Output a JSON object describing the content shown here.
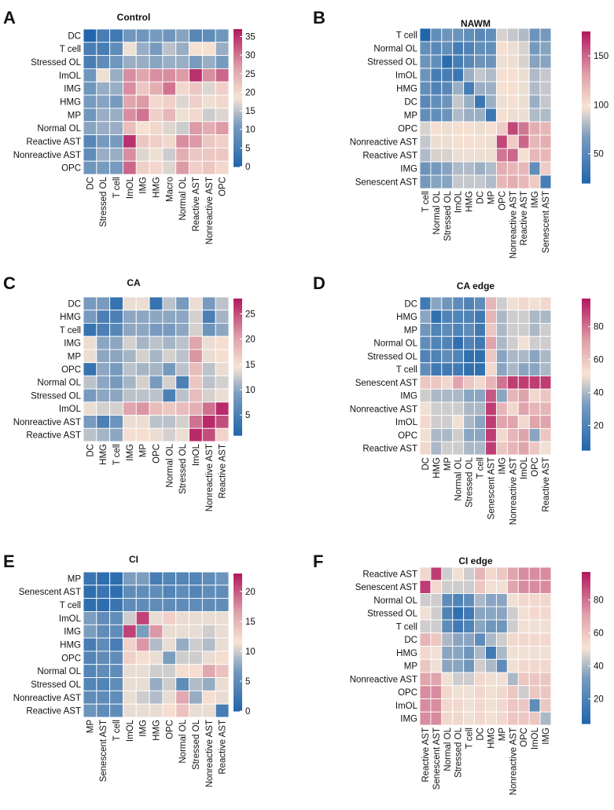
{
  "chart_data": [
    {
      "type": "heatmap",
      "panel_letter": "A",
      "title": "Control",
      "rows": [
        "DC",
        "T cell",
        "Stressed OL",
        "ImOL",
        "IMG",
        "HMG",
        "MP",
        "Normal OL",
        "Reactive AST",
        "Nonreactive AST",
        "OPC"
      ],
      "cols": [
        "DC",
        "Stressed OL",
        "T cell",
        "ImOL",
        "IMG",
        "HMG",
        "Macro",
        "Normal OL",
        "Reactive AST",
        "Nonreactive AST",
        "OPC"
      ],
      "colorbar": {
        "min": 0,
        "max": 37,
        "ticks": [
          "35",
          "30",
          "25",
          "20",
          "15",
          "10",
          "5",
          "0"
        ],
        "tick_values": [
          35,
          30,
          25,
          20,
          15,
          10,
          5,
          0
        ]
      },
      "values": [
        [
          0,
          5,
          4,
          10,
          10,
          11,
          10,
          12,
          7,
          8,
          10
        ],
        [
          5,
          5,
          8,
          18,
          13,
          11,
          15,
          13,
          19,
          19,
          13
        ],
        [
          5,
          8,
          10,
          13,
          13,
          12,
          13,
          13,
          11,
          13,
          11
        ],
        [
          10,
          18,
          13,
          28,
          26,
          28,
          28,
          27,
          35,
          28,
          31
        ],
        [
          10,
          13,
          13,
          28,
          22,
          25,
          30,
          20,
          22,
          17,
          21
        ],
        [
          11,
          12,
          11,
          26,
          27,
          20,
          21,
          17,
          21,
          18,
          20
        ],
        [
          10,
          13,
          13,
          28,
          30,
          21,
          24,
          18,
          20,
          16,
          17
        ],
        [
          12,
          13,
          13,
          23,
          19,
          20,
          17,
          16,
          27,
          25,
          27
        ],
        [
          7,
          11,
          11,
          35,
          22,
          21,
          20,
          28,
          27,
          22,
          21
        ],
        [
          8,
          13,
          13,
          28,
          17,
          18,
          16,
          25,
          22,
          22,
          22
        ],
        [
          10,
          11,
          11,
          31,
          21,
          20,
          17,
          27,
          21,
          22,
          20
        ]
      ]
    },
    {
      "type": "heatmap",
      "panel_letter": "B",
      "title": "NAWM",
      "rows": [
        "T cell",
        "Normal OL",
        "Stressed OL",
        "ImOL",
        "HMG",
        "DC",
        "MP",
        "OPC",
        "Nonreactive AST",
        "Reactive AST",
        "IMG",
        "Senescent AST"
      ],
      "cols": [
        "T cell",
        "Normal OL",
        "Stressed OL",
        "ImOL",
        "HMG",
        "DC",
        "MP",
        "OPC",
        "Nonreactive AST",
        "Reactive AST",
        "IMG",
        "Senescent AST"
      ],
      "colorbar": {
        "min": 20,
        "max": 175,
        "ticks": [
          "150",
          "100",
          "50"
        ],
        "tick_values": [
          150,
          100,
          50
        ]
      },
      "values": [
        [
          20,
          55,
          60,
          60,
          55,
          50,
          55,
          90,
          85,
          80,
          60,
          65
        ],
        [
          55,
          50,
          55,
          40,
          45,
          55,
          55,
          100,
          95,
          90,
          65,
          70
        ],
        [
          60,
          55,
          25,
          40,
          50,
          60,
          60,
          95,
          95,
          90,
          70,
          70
        ],
        [
          60,
          40,
          40,
          35,
          75,
          85,
          80,
          100,
          100,
          95,
          80,
          85
        ],
        [
          55,
          45,
          50,
          75,
          40,
          75,
          75,
          100,
          100,
          95,
          80,
          85
        ],
        [
          50,
          55,
          60,
          85,
          75,
          35,
          75,
          95,
          100,
          95,
          75,
          85
        ],
        [
          55,
          55,
          60,
          80,
          75,
          75,
          35,
          100,
          95,
          95,
          80,
          80
        ],
        [
          90,
          100,
          95,
          100,
          100,
          95,
          100,
          110,
          160,
          145,
          125,
          120
        ],
        [
          85,
          95,
          95,
          100,
          100,
          100,
          95,
          160,
          110,
          150,
          120,
          125
        ],
        [
          80,
          90,
          90,
          95,
          95,
          95,
          95,
          145,
          150,
          100,
          120,
          120
        ],
        [
          60,
          65,
          70,
          80,
          80,
          75,
          80,
          125,
          120,
          120,
          55,
          110
        ],
        [
          65,
          70,
          70,
          85,
          85,
          85,
          80,
          120,
          125,
          120,
          110,
          40
        ]
      ]
    },
    {
      "type": "heatmap",
      "panel_letter": "C",
      "title": "CA",
      "rows": [
        "DC",
        "HMG",
        "T cell",
        "IMG",
        "MP",
        "OPC",
        "Normal OL",
        "Stressed OL",
        "ImOL",
        "Nonreactive AST",
        "Reactive AST"
      ],
      "cols": [
        "DC",
        "HMG",
        "T cell",
        "IMG",
        "MP",
        "OPC",
        "Normal OL",
        "Stressed OL",
        "ImOL",
        "Nonreactive AST",
        "Reactive AST"
      ],
      "colorbar": {
        "min": 1,
        "max": 28,
        "ticks": [
          "25",
          "20",
          "15",
          "10",
          "5"
        ],
        "tick_values": [
          25,
          20,
          15,
          10,
          5
        ]
      },
      "values": [
        [
          9,
          9,
          3,
          14,
          14,
          3,
          12,
          9,
          14,
          9,
          12
        ],
        [
          9,
          5,
          5,
          10,
          10,
          10,
          10,
          10,
          13,
          5,
          11
        ],
        [
          3,
          5,
          6,
          10,
          10,
          9,
          9,
          10,
          13,
          8,
          10
        ],
        [
          14,
          10,
          10,
          13,
          11,
          12,
          11,
          12,
          20,
          14,
          15
        ],
        [
          14,
          10,
          10,
          11,
          13,
          11,
          13,
          12,
          21,
          14,
          15
        ],
        [
          3,
          10,
          9,
          12,
          11,
          11,
          9,
          12,
          18,
          12,
          14
        ],
        [
          12,
          10,
          9,
          11,
          13,
          9,
          13,
          5,
          17,
          12,
          13
        ],
        [
          9,
          10,
          10,
          12,
          12,
          12,
          5,
          12,
          18,
          13,
          14
        ],
        [
          14,
          13,
          13,
          20,
          21,
          18,
          17,
          18,
          19,
          23,
          27
        ],
        [
          9,
          5,
          8,
          14,
          14,
          12,
          12,
          13,
          23,
          27,
          25
        ],
        [
          12,
          11,
          10,
          15,
          15,
          14,
          13,
          14,
          27,
          25,
          16
        ]
      ]
    },
    {
      "type": "heatmap",
      "panel_letter": "D",
      "title": "CA edge",
      "rows": [
        "DC",
        "HMG",
        "MP",
        "Normal OL",
        "Stressed OL",
        "T cell",
        "Senescent AST",
        "IMG",
        "Nonreactive AST",
        "ImOL",
        "OPC",
        "Reactive AST"
      ],
      "cols": [
        "DC",
        "HMG",
        "MP",
        "Normal OL",
        "Stressed OL",
        "T cell",
        "Senescent AST",
        "IMG",
        "Nonreactive AST",
        "ImOL",
        "OPC",
        "Reactive AST"
      ],
      "colorbar": {
        "min": 5,
        "max": 97,
        "ticks": [
          "80",
          "60",
          "40",
          "20"
        ],
        "tick_values": [
          80,
          60,
          40,
          20
        ]
      },
      "values": [
        [
          15,
          35,
          30,
          25,
          20,
          25,
          65,
          45,
          50,
          55,
          50,
          55
        ],
        [
          35,
          10,
          20,
          20,
          20,
          15,
          65,
          40,
          45,
          45,
          40,
          40
        ],
        [
          30,
          20,
          25,
          20,
          25,
          15,
          60,
          40,
          45,
          45,
          40,
          45
        ],
        [
          25,
          20,
          20,
          10,
          20,
          15,
          70,
          40,
          45,
          50,
          45,
          45
        ],
        [
          20,
          20,
          25,
          20,
          10,
          10,
          60,
          35,
          40,
          40,
          35,
          40
        ],
        [
          25,
          15,
          15,
          15,
          10,
          10,
          55,
          35,
          40,
          35,
          35,
          40
        ],
        [
          60,
          60,
          55,
          70,
          60,
          55,
          65,
          80,
          90,
          90,
          90,
          90
        ],
        [
          45,
          40,
          40,
          40,
          35,
          35,
          85,
          35,
          65,
          70,
          55,
          60
        ],
        [
          50,
          45,
          45,
          45,
          40,
          40,
          90,
          65,
          55,
          70,
          65,
          65
        ],
        [
          55,
          45,
          45,
          50,
          40,
          35,
          90,
          70,
          70,
          55,
          70,
          70
        ],
        [
          50,
          40,
          40,
          45,
          35,
          35,
          90,
          55,
          65,
          70,
          35,
          60
        ],
        [
          55,
          40,
          45,
          45,
          40,
          40,
          90,
          60,
          65,
          70,
          60,
          50
        ]
      ]
    },
    {
      "type": "heatmap",
      "panel_letter": "E",
      "title": "CI",
      "rows": [
        "MP",
        "Senescent AST",
        "T cell",
        "ImOL",
        "IMG",
        "HMG",
        "OPC",
        "Normal OL",
        "Stressed OL",
        "Nonreactive AST",
        "Reactive AST"
      ],
      "cols": [
        "MP",
        "Senescent AST",
        "T cell",
        "ImOL",
        "IMG",
        "HMG",
        "OPC",
        "Normal OL",
        "Stressed OL",
        "Nonreactive AST",
        "Reactive AST"
      ],
      "colorbar": {
        "min": 0,
        "max": 23,
        "ticks": [
          "20",
          "15",
          "10",
          "5",
          "0"
        ],
        "tick_values": [
          20,
          15,
          10,
          5,
          0
        ]
      },
      "values": [
        [
          2,
          1,
          1,
          7,
          7,
          3,
          4,
          4,
          4,
          5,
          6
        ],
        [
          1,
          2,
          1,
          5,
          5,
          5,
          4,
          5,
          4,
          5,
          5
        ],
        [
          1,
          1,
          2,
          5,
          5,
          5,
          5,
          5,
          5,
          5,
          5
        ],
        [
          7,
          5,
          5,
          10,
          21,
          11,
          13,
          11,
          11,
          11,
          11
        ],
        [
          7,
          5,
          5,
          21,
          7,
          17,
          11,
          11,
          11,
          10,
          11
        ],
        [
          3,
          5,
          3,
          13,
          17,
          9,
          11,
          8,
          10,
          9,
          11
        ],
        [
          4,
          5,
          5,
          13,
          12,
          11,
          7,
          10,
          10,
          11,
          12
        ],
        [
          4,
          5,
          5,
          11,
          11,
          10,
          10,
          12,
          12,
          16,
          14
        ],
        [
          4,
          4,
          5,
          11,
          11,
          8,
          10,
          5,
          9,
          8,
          11
        ],
        [
          5,
          5,
          5,
          11,
          10,
          9,
          11,
          16,
          8,
          12,
          11
        ],
        [
          6,
          5,
          5,
          11,
          11,
          11,
          12,
          14,
          11,
          11,
          3
        ]
      ]
    },
    {
      "type": "heatmap",
      "panel_letter": "F",
      "title": "CI edge",
      "rows": [
        "Reactive AST",
        "Senescent AST",
        "Normal OL",
        "Stressed OL",
        "T cell",
        "DC",
        "HMG",
        "MP",
        "Nonreactive AST",
        "OPC",
        "ImOL",
        "IMG"
      ],
      "cols": [
        "Reactive AST",
        "Senescent AST",
        "Normal OL",
        "Stressed OL",
        "T cell",
        "DC",
        "HMG",
        "MP",
        "Nonreactive AST",
        "OPC",
        "ImOL",
        "IMG"
      ],
      "colorbar": {
        "min": 5,
        "max": 97,
        "ticks": [
          "80",
          "60",
          "40",
          "20"
        ],
        "tick_values": [
          80,
          60,
          40,
          20
        ]
      },
      "values": [
        [
          55,
          90,
          45,
          50,
          45,
          65,
          55,
          60,
          70,
          75,
          75,
          75
        ],
        [
          90,
          55,
          45,
          45,
          45,
          60,
          50,
          50,
          70,
          75,
          75,
          75
        ],
        [
          45,
          45,
          25,
          20,
          25,
          40,
          35,
          35,
          50,
          55,
          55,
          55
        ],
        [
          50,
          45,
          20,
          10,
          15,
          35,
          35,
          35,
          45,
          50,
          55,
          55
        ],
        [
          45,
          45,
          25,
          15,
          20,
          35,
          30,
          30,
          45,
          50,
          50,
          50
        ],
        [
          65,
          60,
          40,
          35,
          35,
          25,
          40,
          45,
          55,
          55,
          55,
          55
        ],
        [
          55,
          50,
          35,
          35,
          30,
          40,
          15,
          40,
          50,
          50,
          50,
          50
        ],
        [
          60,
          50,
          35,
          35,
          30,
          45,
          40,
          25,
          50,
          55,
          55,
          55
        ],
        [
          70,
          70,
          50,
          45,
          45,
          55,
          50,
          50,
          40,
          60,
          60,
          60
        ],
        [
          75,
          75,
          55,
          50,
          50,
          55,
          50,
          55,
          60,
          45,
          60,
          60
        ],
        [
          75,
          75,
          55,
          55,
          50,
          55,
          50,
          55,
          60,
          60,
          25,
          60
        ],
        [
          75,
          75,
          55,
          55,
          50,
          55,
          50,
          55,
          60,
          60,
          60,
          40
        ]
      ]
    }
  ],
  "colors": {
    "low": "#2166ac",
    "mid": "#f7e4d4",
    "high": "#b2185f"
  }
}
